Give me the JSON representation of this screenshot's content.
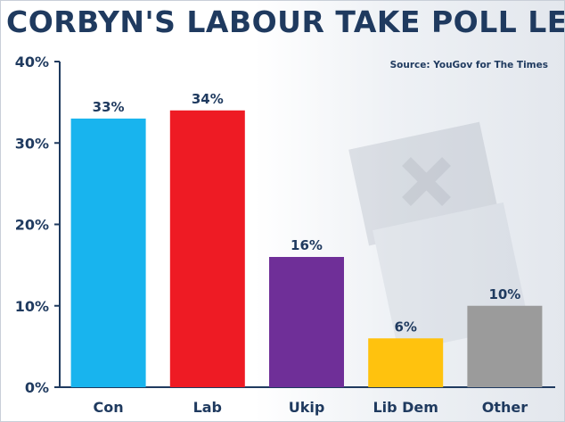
{
  "chart_data": {
    "type": "bar",
    "title": "CORBYN'S LABOUR TAKE POLL LEAD",
    "source": "Source: YouGov for The Times",
    "categories": [
      "Con",
      "Lab",
      "Ukip",
      "Lib Dem",
      "Other"
    ],
    "values": [
      33,
      34,
      16,
      6,
      10
    ],
    "value_labels": [
      "33%",
      "34%",
      "16%",
      "6%",
      "10%"
    ],
    "colors": [
      "#18b4ee",
      "#ee1b24",
      "#6f2f98",
      "#ffc20e",
      "#9b9b9b"
    ],
    "yticks": [
      0,
      10,
      20,
      30,
      40
    ],
    "ytick_labels": [
      "0%",
      "10%",
      "20%",
      "30%",
      "40%"
    ],
    "ylim": [
      0,
      40
    ],
    "xlabel": "",
    "ylabel": "",
    "grid": false
  }
}
